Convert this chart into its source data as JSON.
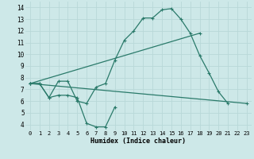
{
  "xlabel": "Humidex (Indice chaleur)",
  "background_color": "#cde8e8",
  "grid_color": "#b8d8d8",
  "line_color": "#2a7a6a",
  "xlim": [
    -0.5,
    23.5
  ],
  "ylim": [
    3.5,
    14.5
  ],
  "xticks": [
    0,
    1,
    2,
    3,
    4,
    5,
    6,
    7,
    8,
    9,
    10,
    11,
    12,
    13,
    14,
    15,
    16,
    17,
    18,
    19,
    20,
    21,
    22,
    23
  ],
  "yticks": [
    4,
    5,
    6,
    7,
    8,
    9,
    10,
    11,
    12,
    13,
    14
  ],
  "line1_x": [
    0,
    1,
    2,
    3,
    4,
    5,
    6,
    7,
    8,
    9,
    10,
    11,
    12,
    13,
    14,
    15,
    16,
    17,
    18,
    19,
    20,
    21
  ],
  "line1_y": [
    7.5,
    7.5,
    6.3,
    7.7,
    7.7,
    6.0,
    5.8,
    7.2,
    7.5,
    9.5,
    11.2,
    12.0,
    13.1,
    13.1,
    13.8,
    13.9,
    13.0,
    11.8,
    9.9,
    8.4,
    6.8,
    5.8
  ],
  "line2_x": [
    0,
    1,
    2,
    3,
    4,
    5,
    6,
    7,
    8,
    9
  ],
  "line2_y": [
    7.5,
    7.5,
    6.3,
    6.5,
    6.5,
    6.3,
    4.1,
    3.8,
    3.8,
    5.5
  ],
  "line3_x": [
    0,
    23
  ],
  "line3_y": [
    7.5,
    5.8
  ],
  "line4_x": [
    0,
    18
  ],
  "line4_y": [
    7.5,
    11.8
  ]
}
